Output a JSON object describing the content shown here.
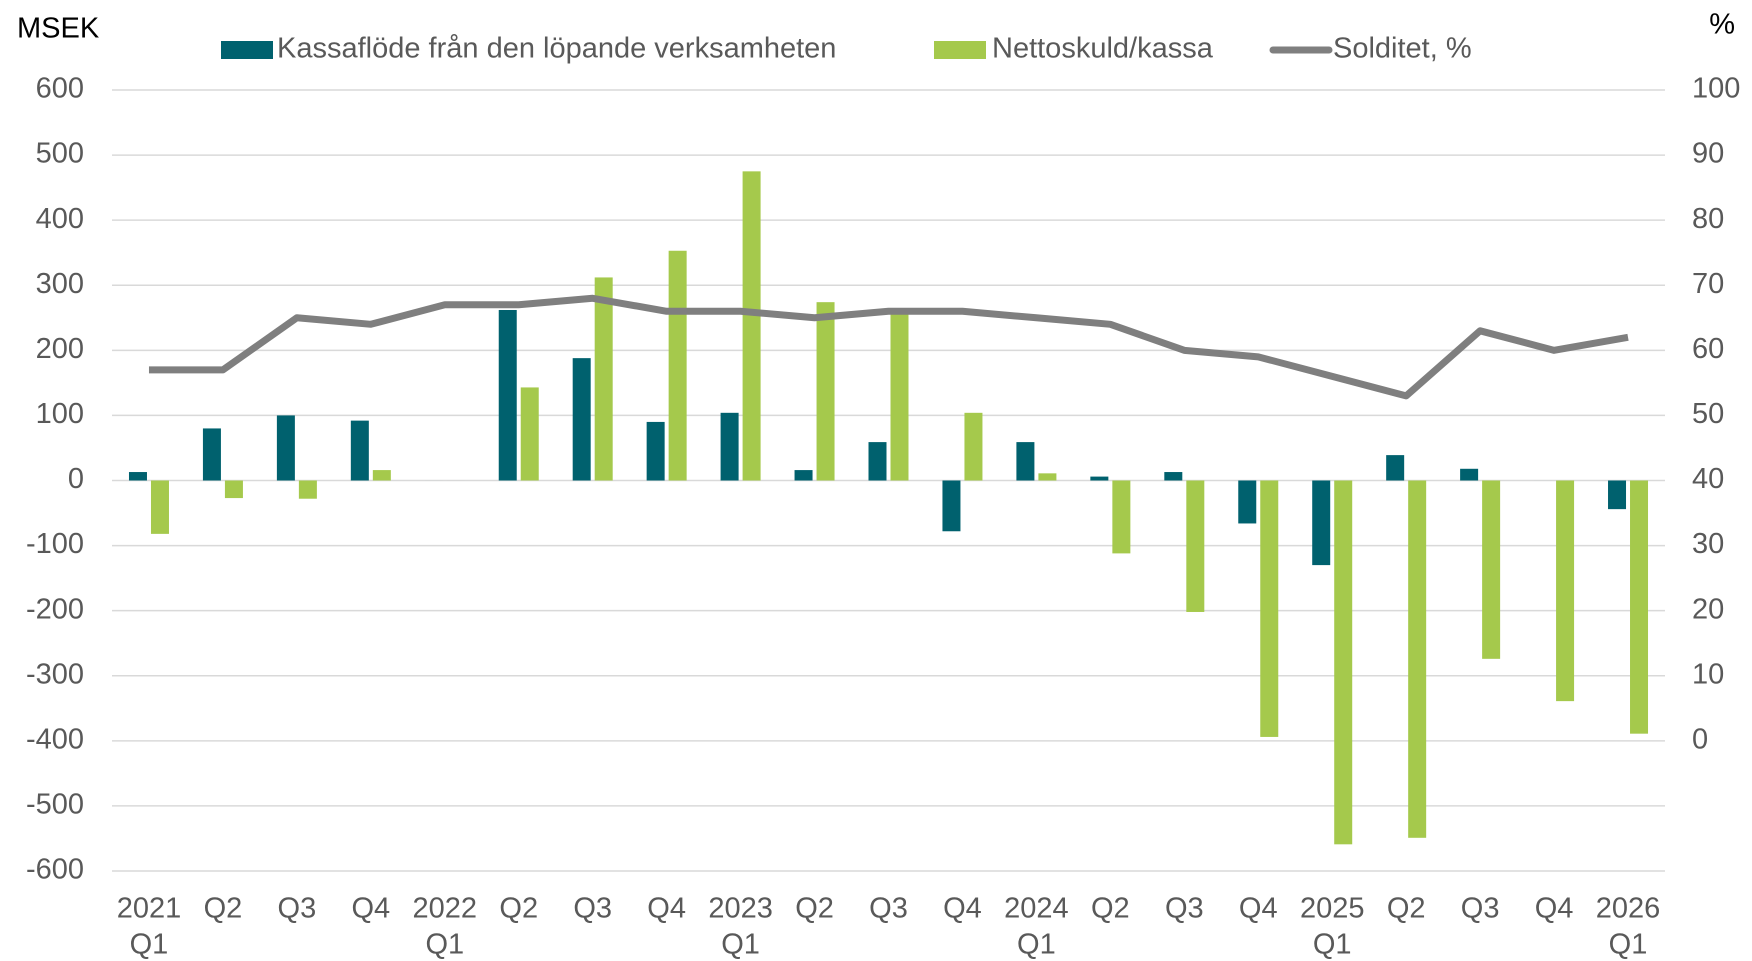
{
  "chart_data": {
    "type": "bar",
    "left_axis_label": "MSEK",
    "right_axis_label": "%",
    "categories": [
      [
        "2021",
        "Q1"
      ],
      [
        "Q2"
      ],
      [
        "Q3"
      ],
      [
        "Q4"
      ],
      [
        "2022",
        "Q1"
      ],
      [
        "Q2"
      ],
      [
        "Q3"
      ],
      [
        "Q4"
      ],
      [
        "2023",
        "Q1"
      ],
      [
        "Q2"
      ],
      [
        "Q3"
      ],
      [
        "Q4"
      ],
      [
        "2024",
        "Q1"
      ],
      [
        "Q2"
      ],
      [
        "Q3"
      ],
      [
        "Q4"
      ],
      [
        "2025",
        "Q1"
      ],
      [
        "Q2"
      ],
      [
        "Q3"
      ],
      [
        "Q4"
      ],
      [
        "2026",
        "Q1"
      ]
    ],
    "series": [
      {
        "name": "Kassaflöde från den löpande verksamheten",
        "type": "bar",
        "color": "#00616e",
        "values": [
          13,
          80,
          100,
          92,
          0,
          262,
          188,
          90,
          104,
          16,
          59,
          -78,
          59,
          6,
          13,
          -66,
          -130,
          39,
          18,
          0,
          -44
        ]
      },
      {
        "name": "Nettoskuld/kassa",
        "type": "bar",
        "color": "#a5c94c",
        "values": [
          -82,
          -27,
          -28,
          16,
          0,
          143,
          312,
          353,
          475,
          274,
          262,
          104,
          11,
          -112,
          -202,
          -394,
          -559,
          -549,
          -274,
          -339,
          -389
        ]
      },
      {
        "name": "Solditet, %",
        "type": "line",
        "color": "#7f7f7f",
        "axis": "y2",
        "values": [
          57,
          57,
          65,
          64,
          67,
          67,
          68,
          66,
          66,
          65,
          66,
          66,
          65,
          64,
          60,
          59,
          56,
          53,
          63,
          60,
          62
        ]
      }
    ],
    "ylim": [
      -600,
      600
    ],
    "yticks": [
      -600,
      -500,
      -400,
      -300,
      -200,
      -100,
      0,
      100,
      200,
      300,
      400,
      500,
      600
    ],
    "y2lim": [
      -20,
      100
    ],
    "y2ticks": [
      0,
      10,
      20,
      30,
      40,
      50,
      60,
      70,
      80,
      90,
      100
    ],
    "grid": true,
    "legend": "top"
  }
}
